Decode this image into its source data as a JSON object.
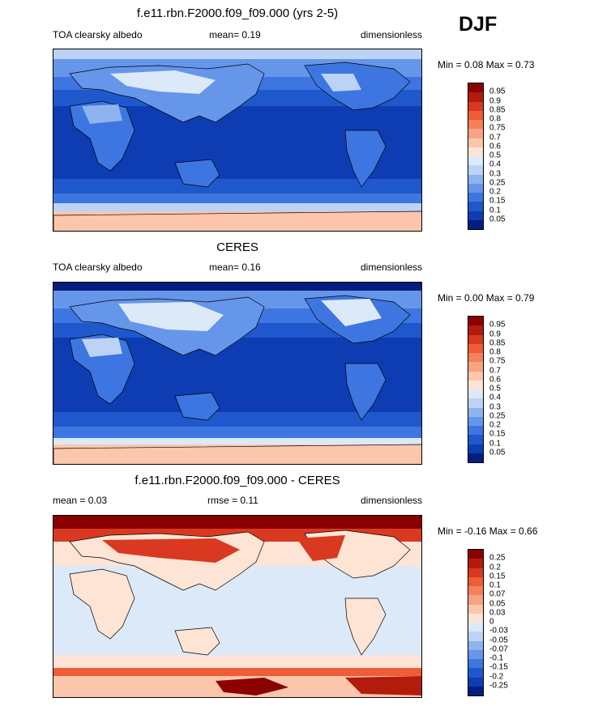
{
  "season": "DJF",
  "panels": [
    {
      "id": "model",
      "title": "f.e11.rbn.F2000.f09_f09.000 (yrs 2-5)",
      "left_text": "TOA clearsky albedo",
      "mid_text": "mean=  0.19",
      "right_text": "dimensionless",
      "minmax": "Min =  0.08 Max =  0.73",
      "colorbar": {
        "labels": [
          "0.95",
          "0.9",
          "0.85",
          "0.8",
          "0.75",
          "0.7",
          "0.6",
          "0.5",
          "0.4",
          "0.3",
          "0.25",
          "0.2",
          "0.15",
          "0.1",
          "0.05"
        ],
        "colors": [
          "#8b0000",
          "#b31b0d",
          "#d93920",
          "#ee5c38",
          "#f4805c",
          "#f7a283",
          "#fbc6ac",
          "#fde4d4",
          "#dce9f9",
          "#bcd3f5",
          "#8eb4ef",
          "#6596ea",
          "#3d76e0",
          "#1f58cc",
          "#0e3db3",
          "#031e80"
        ]
      }
    },
    {
      "id": "obs",
      "title": "CERES",
      "left_text": "TOA clearsky albedo",
      "mid_text": "mean=  0.16",
      "right_text": "dimensionless",
      "minmax": "Min =  0.00 Max =  0.79",
      "colorbar": {
        "labels": [
          "0.95",
          "0.9",
          "0.85",
          "0.8",
          "0.75",
          "0.7",
          "0.6",
          "0.5",
          "0.4",
          "0.3",
          "0.25",
          "0.2",
          "0.15",
          "0.1",
          "0.05"
        ],
        "colors": [
          "#8b0000",
          "#b31b0d",
          "#d93920",
          "#ee5c38",
          "#f4805c",
          "#f7a283",
          "#fbc6ac",
          "#fde4d4",
          "#dce9f9",
          "#bcd3f5",
          "#8eb4ef",
          "#6596ea",
          "#3d76e0",
          "#1f58cc",
          "#0e3db3",
          "#031e80"
        ]
      }
    },
    {
      "id": "diff",
      "title": "f.e11.rbn.F2000.f09_f09.000 - CERES",
      "left_text": "mean =   0.03",
      "mid_text": "rmse =   0.11",
      "right_text": "dimensionless",
      "minmax": "Min =  -0.16 Max =   0.66",
      "colorbar": {
        "labels": [
          "0.25",
          "0.2",
          "0.15",
          "0.1",
          "0.07",
          "0.05",
          "0.03",
          "0",
          "-0.03",
          "-0.05",
          "-0.07",
          "-0.1",
          "-0.15",
          "-0.2",
          "-0.25"
        ],
        "colors": [
          "#8b0000",
          "#b31b0d",
          "#d93920",
          "#ee5c38",
          "#f4805c",
          "#f7a283",
          "#fbc6ac",
          "#fde4d4",
          "#dce9f9",
          "#bcd3f5",
          "#8eb4ef",
          "#6596ea",
          "#3d76e0",
          "#1f58cc",
          "#0e3db3",
          "#031e80"
        ]
      }
    }
  ],
  "chart_data": [
    {
      "type": "heatmap",
      "title": "f.e11.rbn.F2000.f09_f09.000 (yrs 2-5)",
      "field": "TOA clearsky albedo",
      "units": "dimensionless",
      "mean": 0.19,
      "min": 0.08,
      "max": 0.73,
      "levels": [
        0.05,
        0.1,
        0.15,
        0.2,
        0.25,
        0.3,
        0.4,
        0.5,
        0.6,
        0.7,
        0.75,
        0.8,
        0.85,
        0.9,
        0.95
      ]
    },
    {
      "type": "heatmap",
      "title": "CERES",
      "field": "TOA clearsky albedo",
      "units": "dimensionless",
      "mean": 0.16,
      "min": 0.0,
      "max": 0.79,
      "levels": [
        0.05,
        0.1,
        0.15,
        0.2,
        0.25,
        0.3,
        0.4,
        0.5,
        0.6,
        0.7,
        0.75,
        0.8,
        0.85,
        0.9,
        0.95
      ]
    },
    {
      "type": "heatmap",
      "title": "f.e11.rbn.F2000.f09_f09.000 - CERES",
      "units": "dimensionless",
      "mean": 0.03,
      "rmse": 0.11,
      "min": -0.16,
      "max": 0.66,
      "levels": [
        -0.25,
        -0.2,
        -0.15,
        -0.1,
        -0.07,
        -0.05,
        -0.03,
        0,
        0.03,
        0.05,
        0.07,
        0.1,
        0.15,
        0.2,
        0.25
      ]
    }
  ]
}
